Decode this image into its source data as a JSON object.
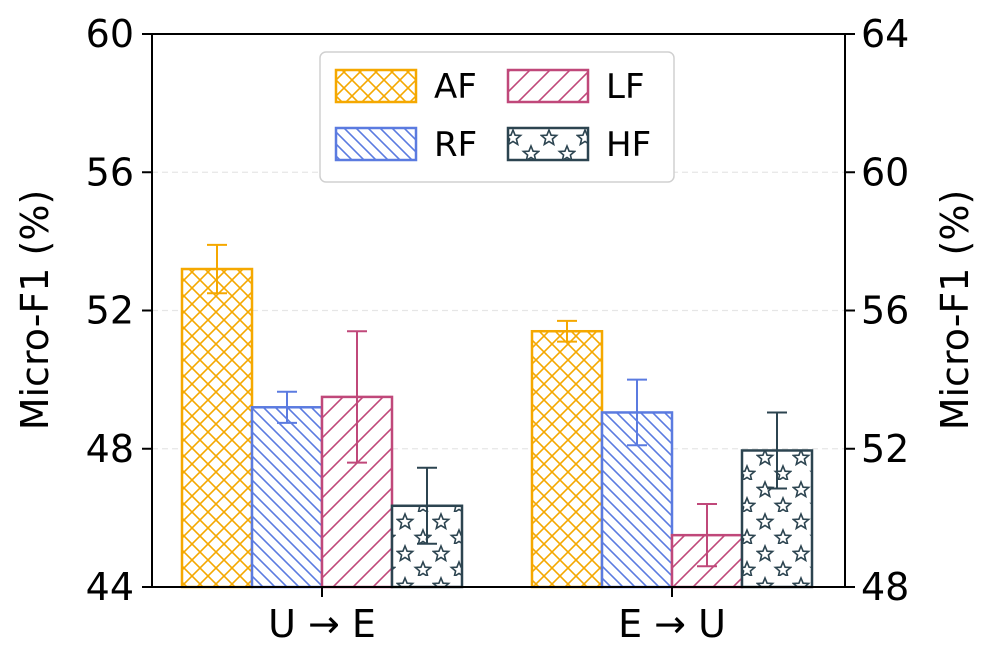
{
  "chart_data": {
    "type": "bar",
    "categories": [
      "U → E",
      "E → U"
    ],
    "ylabel": "Micro-F1 (%)",
    "ylabel_right": "Micro-F1 (%)",
    "ylim": [
      44,
      60
    ],
    "yticks": [
      "44",
      "48",
      "52",
      "56",
      "60"
    ],
    "ylim_right": [
      48,
      64
    ],
    "yticks_right": [
      "48",
      "52",
      "56",
      "60",
      "64"
    ],
    "grid": true,
    "legend_position": "top-center",
    "series": [
      {
        "name": "AF",
        "values": [
          53.2,
          51.4
        ],
        "errors": [
          0.7,
          0.3
        ],
        "color": "#f5a800",
        "pattern": "crosshatch"
      },
      {
        "name": "RF",
        "values": [
          49.2,
          49.05
        ],
        "errors": [
          0.45,
          0.95
        ],
        "color": "#5b7be0",
        "pattern": "backslash"
      },
      {
        "name": "LF",
        "values": [
          49.5,
          45.5
        ],
        "errors": [
          1.9,
          0.9
        ],
        "color": "#c0487a",
        "pattern": "slash"
      },
      {
        "name": "HF",
        "values": [
          46.35,
          47.95
        ],
        "errors": [
          1.1,
          1.1
        ],
        "color": "#2c4450",
        "pattern": "stars"
      }
    ]
  }
}
